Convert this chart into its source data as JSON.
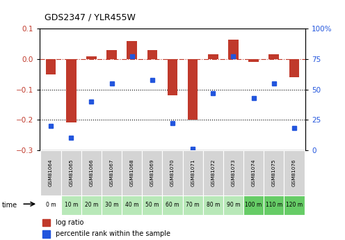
{
  "title": "GDS2347 / YLR455W",
  "samples": [
    "GSM81064",
    "GSM81065",
    "GSM81066",
    "GSM81067",
    "GSM81068",
    "GSM81069",
    "GSM81070",
    "GSM81071",
    "GSM81072",
    "GSM81073",
    "GSM81074",
    "GSM81075",
    "GSM81076"
  ],
  "time_labels": [
    "0 m",
    "10 m",
    "20 m",
    "30 m",
    "40 m",
    "50 m",
    "60 m",
    "70 m",
    "80 m",
    "90 m",
    "100 m",
    "110 m",
    "120 m"
  ],
  "log_ratio": [
    -0.05,
    -0.21,
    0.01,
    0.03,
    0.06,
    0.03,
    -0.12,
    -0.2,
    0.015,
    0.065,
    -0.01,
    0.015,
    -0.06
  ],
  "percentile": [
    20,
    10,
    40,
    55,
    77,
    58,
    22,
    1,
    47,
    77,
    43,
    55,
    18
  ],
  "bar_color": "#c0392b",
  "dot_color": "#2255dd",
  "cell_gray": "#d4d4d4",
  "cell_white": "#ffffff",
  "cell_light_green": "#b8e8b8",
  "cell_dark_green": "#66cc66",
  "ylim_left": [
    -0.3,
    0.1
  ],
  "ylim_right": [
    0,
    100
  ],
  "right_ticks": [
    0,
    25,
    50,
    75,
    100
  ],
  "right_tick_labels": [
    "0",
    "25",
    "50",
    "75",
    "100%"
  ],
  "sample_cell_colors": [
    0,
    0,
    0,
    0,
    0,
    0,
    0,
    0,
    0,
    0,
    0,
    0,
    0
  ],
  "time_cell_colors": [
    0,
    1,
    1,
    1,
    1,
    1,
    1,
    1,
    1,
    1,
    2,
    2,
    2
  ]
}
